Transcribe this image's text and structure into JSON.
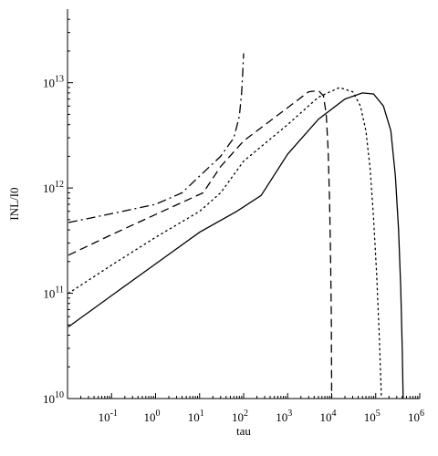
{
  "chart_data": {
    "type": "line",
    "xlabel": "tau",
    "ylabel": "INL/I0",
    "xscale": "log",
    "yscale": "log",
    "xlim": [
      0.01,
      1000000
    ],
    "ylim": [
      10000000000,
      50000000000000
    ],
    "grid": false,
    "x_ticks": [
      {
        "value": 0.1,
        "base": "10",
        "exp": "-1"
      },
      {
        "value": 1,
        "base": "10",
        "exp": "0"
      },
      {
        "value": 10,
        "base": "10",
        "exp": "1"
      },
      {
        "value": 100,
        "base": "10",
        "exp": "2"
      },
      {
        "value": 1000,
        "base": "10",
        "exp": "3"
      },
      {
        "value": 10000,
        "base": "10",
        "exp": "4"
      },
      {
        "value": 100000,
        "base": "10",
        "exp": "5"
      },
      {
        "value": 1000000,
        "base": "10",
        "exp": "6"
      }
    ],
    "y_ticks": [
      {
        "value": 10000000000,
        "base": "10",
        "exp": "10"
      },
      {
        "value": 100000000000,
        "base": "10",
        "exp": "11"
      },
      {
        "value": 1000000000000,
        "base": "10",
        "exp": "12"
      },
      {
        "value": 10000000000000,
        "base": "10",
        "exp": "13"
      }
    ],
    "series": [
      {
        "style": "solid",
        "points": [
          [
            0.0105,
            48000000000
          ],
          [
            0.1,
            95000000000
          ],
          [
            1,
            190000000000
          ],
          [
            10,
            380000000000
          ],
          [
            70,
            600000000000
          ],
          [
            250,
            850000000000
          ],
          [
            1000,
            2100000000000
          ],
          [
            5000,
            4500000000000
          ],
          [
            20000,
            7000000000000
          ],
          [
            50000,
            8000000000000
          ],
          [
            90000,
            7800000000000
          ],
          [
            150000,
            6000000000000
          ],
          [
            220000,
            3500000000000
          ],
          [
            280000,
            1300000000000
          ],
          [
            330000,
            400000000000
          ],
          [
            370000,
            110000000000
          ],
          [
            400000,
            30000000000
          ],
          [
            420000,
            10000000000
          ]
        ]
      },
      {
        "style": "dotted",
        "points": [
          [
            0.0105,
            100000000000
          ],
          [
            0.1,
            185000000000
          ],
          [
            1,
            340000000000
          ],
          [
            10,
            600000000000
          ],
          [
            30,
            900000000000
          ],
          [
            100,
            1800000000000
          ],
          [
            1000,
            4000000000000
          ],
          [
            5000,
            7300000000000
          ],
          [
            15000,
            9000000000000
          ],
          [
            30000,
            8200000000000
          ],
          [
            45000,
            6000000000000
          ],
          [
            60000,
            3500000000000
          ],
          [
            75000,
            1500000000000
          ],
          [
            90000,
            500000000000
          ],
          [
            105000,
            150000000000
          ],
          [
            120000,
            40000000000
          ],
          [
            135000,
            10000000000
          ]
        ]
      },
      {
        "style": "dashed",
        "points": [
          [
            0.0105,
            230000000000
          ],
          [
            0.1,
            360000000000
          ],
          [
            1,
            560000000000
          ],
          [
            12,
            900000000000
          ],
          [
            30,
            1600000000000
          ],
          [
            100,
            2800000000000
          ],
          [
            1000,
            5800000000000
          ],
          [
            3000,
            8200000000000
          ],
          [
            5000,
            8400000000000
          ],
          [
            6500,
            7500000000000
          ],
          [
            7500,
            5000000000000
          ],
          [
            8300,
            2300000000000
          ],
          [
            8900,
            800000000000
          ],
          [
            9400,
            250000000000
          ],
          [
            9800,
            60000000000
          ],
          [
            10000,
            10000000000
          ]
        ]
      },
      {
        "style": "dashdot",
        "points": [
          [
            0.0105,
            470000000000
          ],
          [
            0.1,
            570000000000
          ],
          [
            1,
            700000000000
          ],
          [
            4,
            900000000000
          ],
          [
            10,
            1300000000000
          ],
          [
            30,
            2000000000000
          ],
          [
            60,
            3000000000000
          ],
          [
            80,
            4800000000000
          ],
          [
            90,
            8000000000000
          ],
          [
            95,
            12000000000000
          ],
          [
            100,
            19000000000000
          ]
        ]
      }
    ]
  }
}
